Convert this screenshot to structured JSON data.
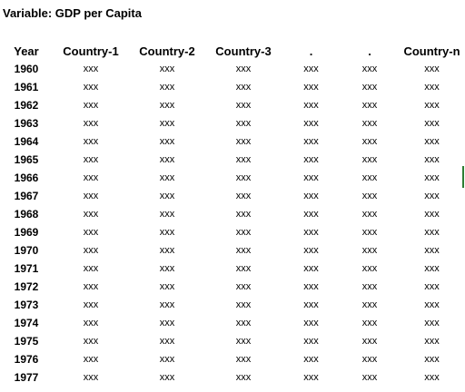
{
  "title": "Variable: GDP per Capita",
  "columns": [
    "Year",
    "Country-1",
    "Country-2",
    "Country-3",
    ".",
    ".",
    "Country-n"
  ],
  "rows": [
    {
      "year": "1960",
      "values": [
        "xxx",
        "xxx",
        "xxx",
        "xxx",
        "xxx",
        "xxx"
      ]
    },
    {
      "year": "1961",
      "values": [
        "xxx",
        "xxx",
        "xxx",
        "xxx",
        "xxx",
        "xxx"
      ]
    },
    {
      "year": "1962",
      "values": [
        "xxx",
        "xxx",
        "xxx",
        "xxx",
        "xxx",
        "xxx"
      ]
    },
    {
      "year": "1963",
      "values": [
        "xxx",
        "xxx",
        "xxx",
        "xxx",
        "xxx",
        "xxx"
      ]
    },
    {
      "year": "1964",
      "values": [
        "xxx",
        "xxx",
        "xxx",
        "xxx",
        "xxx",
        "xxx"
      ]
    },
    {
      "year": "1965",
      "values": [
        "xxx",
        "xxx",
        "xxx",
        "xxx",
        "xxx",
        "xxx"
      ]
    },
    {
      "year": "1966",
      "values": [
        "xxx",
        "xxx",
        "xxx",
        "xxx",
        "xxx",
        "xxx"
      ]
    },
    {
      "year": "1967",
      "values": [
        "xxx",
        "xxx",
        "xxx",
        "xxx",
        "xxx",
        "xxx"
      ]
    },
    {
      "year": "1968",
      "values": [
        "xxx",
        "xxx",
        "xxx",
        "xxx",
        "xxx",
        "xxx"
      ]
    },
    {
      "year": "1969",
      "values": [
        "xxx",
        "xxx",
        "xxx",
        "xxx",
        "xxx",
        "xxx"
      ]
    },
    {
      "year": "1970",
      "values": [
        "xxx",
        "xxx",
        "xxx",
        "xxx",
        "xxx",
        "xxx"
      ]
    },
    {
      "year": "1971",
      "values": [
        "xxx",
        "xxx",
        "xxx",
        "xxx",
        "xxx",
        "xxx"
      ]
    },
    {
      "year": "1972",
      "values": [
        "xxx",
        "xxx",
        "xxx",
        "xxx",
        "xxx",
        "xxx"
      ]
    },
    {
      "year": "1973",
      "values": [
        "xxx",
        "xxx",
        "xxx",
        "xxx",
        "xxx",
        "xxx"
      ]
    },
    {
      "year": "1974",
      "values": [
        "xxx",
        "xxx",
        "xxx",
        "xxx",
        "xxx",
        "xxx"
      ]
    },
    {
      "year": "1975",
      "values": [
        "xxx",
        "xxx",
        "xxx",
        "xxx",
        "xxx",
        "xxx"
      ]
    },
    {
      "year": "1976",
      "values": [
        "xxx",
        "xxx",
        "xxx",
        "xxx",
        "xxx",
        "xxx"
      ]
    },
    {
      "year": "1977",
      "values": [
        "xxx",
        "xxx",
        "xxx",
        "xxx",
        "xxx",
        "xxx"
      ]
    }
  ],
  "colors": {
    "selection_marker": "#2e7d32"
  }
}
